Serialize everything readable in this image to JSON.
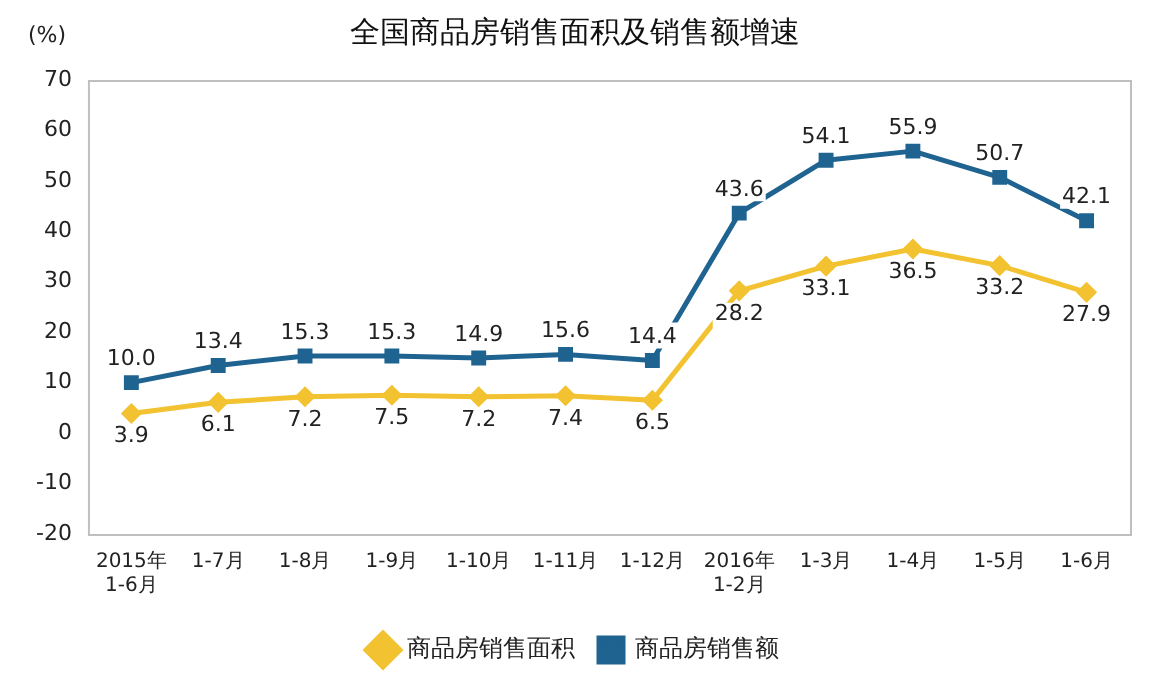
{
  "chart_data": {
    "type": "line",
    "title": "全国商品房销售面积及销售额增速",
    "ylabel": "(%)",
    "categories": [
      "2015年\n1-6月",
      "1-7月",
      "1-8月",
      "1-9月",
      "1-10月",
      "1-11月",
      "1-12月",
      "2016年\n1-2月",
      "1-3月",
      "1-4月",
      "1-5月",
      "1-6月"
    ],
    "series": [
      {
        "name": "商品房销售面积",
        "color": "#f2c230",
        "marker": "diamond",
        "values": [
          3.9,
          6.1,
          7.2,
          7.5,
          7.2,
          7.4,
          6.5,
          28.2,
          33.1,
          36.5,
          33.2,
          27.9
        ],
        "value_labels": [
          "3.9",
          "6.1",
          "7.2",
          "7.5",
          "7.2",
          "7.4",
          "6.5",
          "28.2",
          "33.1",
          "36.5",
          "33.2",
          "27.9"
        ]
      },
      {
        "name": "商品房销售额",
        "color": "#1f6391",
        "marker": "square",
        "values": [
          10.0,
          13.4,
          15.3,
          15.3,
          14.9,
          15.6,
          14.4,
          43.6,
          54.1,
          55.9,
          50.7,
          42.1
        ],
        "value_labels": [
          "10.0",
          "13.4",
          "15.3",
          "15.3",
          "14.9",
          "15.6",
          "14.4",
          "43.6",
          "54.1",
          "55.9",
          "50.7",
          "42.1"
        ]
      }
    ],
    "ylim": [
      -20,
      70
    ],
    "yticks": [
      -20,
      -10,
      0,
      10,
      20,
      30,
      40,
      50,
      60,
      70
    ],
    "grid": false,
    "legend": "bottom"
  }
}
